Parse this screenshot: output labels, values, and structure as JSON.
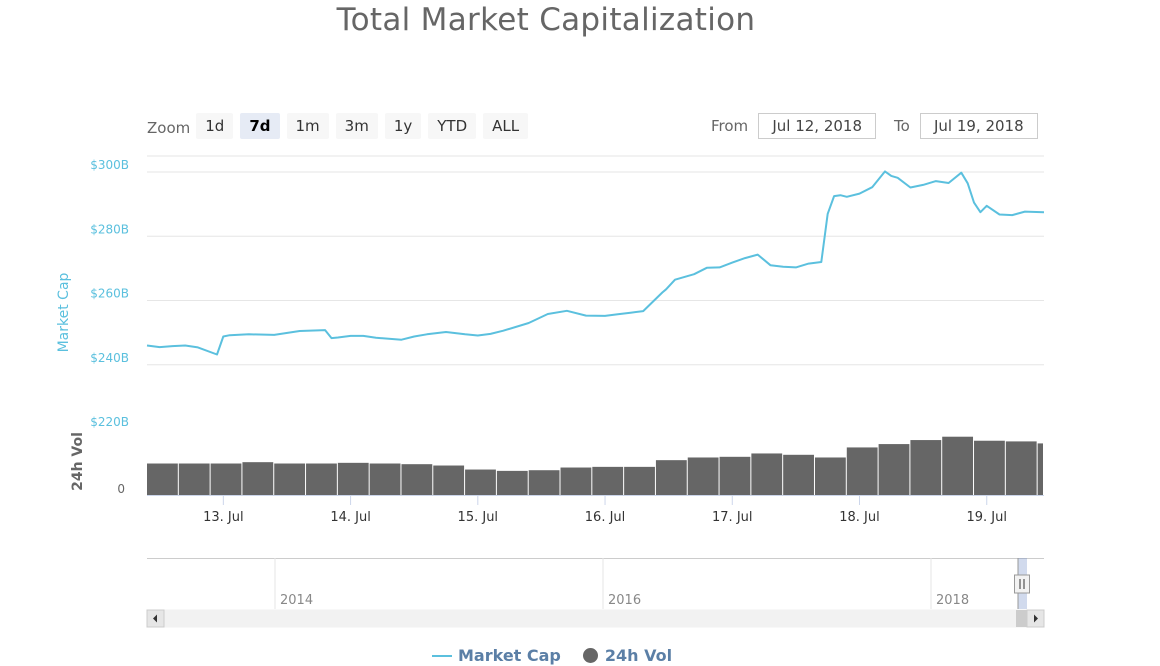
{
  "title": "Total Market Capitalization",
  "zoom": {
    "label": "Zoom",
    "buttons": [
      "1d",
      "7d",
      "1m",
      "3m",
      "1y",
      "YTD",
      "ALL"
    ],
    "active": "7d"
  },
  "range": {
    "from_label": "From",
    "from_value": "Jul 12, 2018",
    "to_label": "To",
    "to_value": "Jul 19, 2018"
  },
  "legend": [
    "Market Cap",
    "24h Vol"
  ],
  "colors": {
    "market_cap": "#5bc0de",
    "volume": "#666666",
    "axis_label": "#5bc0de"
  },
  "chart_data": {
    "type": "line",
    "title": "Total Market Capitalization",
    "x_axis": {
      "ticks": [
        "13. Jul",
        "14. Jul",
        "15. Jul",
        "16. Jul",
        "17. Jul",
        "18. Jul",
        "19. Jul"
      ],
      "range": [
        12.4,
        19.45
      ]
    },
    "series": [
      {
        "name": "Market Cap",
        "type": "line",
        "y_axis": {
          "label": "Market Cap",
          "ticks": [
            "$220B",
            "$240B",
            "$260B",
            "$280B",
            "$300B"
          ],
          "range": [
            220,
            305
          ]
        },
        "x": [
          12.4,
          12.5,
          12.6,
          12.7,
          12.8,
          12.95,
          13.0,
          13.05,
          13.2,
          13.4,
          13.6,
          13.8,
          13.85,
          13.9,
          14.0,
          14.1,
          14.2,
          14.4,
          14.5,
          14.6,
          14.75,
          14.9,
          15.0,
          15.1,
          15.2,
          15.4,
          15.55,
          15.7,
          15.85,
          16.0,
          16.1,
          16.2,
          16.3,
          16.45,
          16.48,
          16.55,
          16.7,
          16.8,
          16.9,
          17.0,
          17.1,
          17.2,
          17.3,
          17.4,
          17.5,
          17.6,
          17.7,
          17.75,
          17.8,
          17.85,
          17.9,
          18.0,
          18.1,
          18.2,
          18.25,
          18.3,
          18.4,
          18.5,
          18.6,
          18.7,
          18.8,
          18.85,
          18.9,
          18.95,
          19.0,
          19.1,
          19.2,
          19.3,
          19.45
        ],
        "y": [
          246,
          245.5,
          245.8,
          246,
          245.4,
          243.2,
          248.8,
          249.2,
          249.5,
          249.3,
          250.5,
          250.8,
          248.3,
          248.5,
          249,
          249,
          248.4,
          247.8,
          248.8,
          249.5,
          250.2,
          249.5,
          249.1,
          249.6,
          250.6,
          253,
          255.8,
          256.8,
          255.3,
          255.2,
          255.7,
          256.2,
          256.7,
          262.5,
          263.5,
          266.5,
          268.2,
          270.2,
          270.3,
          271.8,
          273.2,
          274.3,
          271,
          270.5,
          270.3,
          271.5,
          272,
          287,
          292.5,
          292.8,
          292.3,
          293.3,
          295.3,
          300.2,
          298.8,
          298.2,
          295.2,
          296,
          297.2,
          296.6,
          299.8,
          296.5,
          290.5,
          287.5,
          289.5,
          286.8,
          286.6,
          287.7,
          287.5
        ]
      },
      {
        "name": "24h Vol",
        "type": "column",
        "y_axis": {
          "label": "24h Vol",
          "ticks": [
            "0"
          ],
          "range": [
            0,
            1
          ]
        },
        "x": [
          12.4,
          12.65,
          12.9,
          13.15,
          13.4,
          13.65,
          13.9,
          14.15,
          14.4,
          14.65,
          14.9,
          15.15,
          15.4,
          15.65,
          15.9,
          16.15,
          16.4,
          16.65,
          16.9,
          17.15,
          17.4,
          17.65,
          17.9,
          18.15,
          18.4,
          18.65,
          18.9,
          19.15,
          19.4
        ],
        "y": [
          0.47,
          0.47,
          0.47,
          0.49,
          0.47,
          0.47,
          0.48,
          0.47,
          0.46,
          0.44,
          0.38,
          0.36,
          0.37,
          0.41,
          0.42,
          0.42,
          0.52,
          0.56,
          0.57,
          0.62,
          0.6,
          0.56,
          0.71,
          0.76,
          0.82,
          0.87,
          0.81,
          0.8,
          0.77
        ]
      }
    ],
    "navigator": {
      "ticks": [
        "2014",
        "2016",
        "2018"
      ]
    },
    "legend": {
      "position": "bottom-center"
    },
    "grid": true
  }
}
